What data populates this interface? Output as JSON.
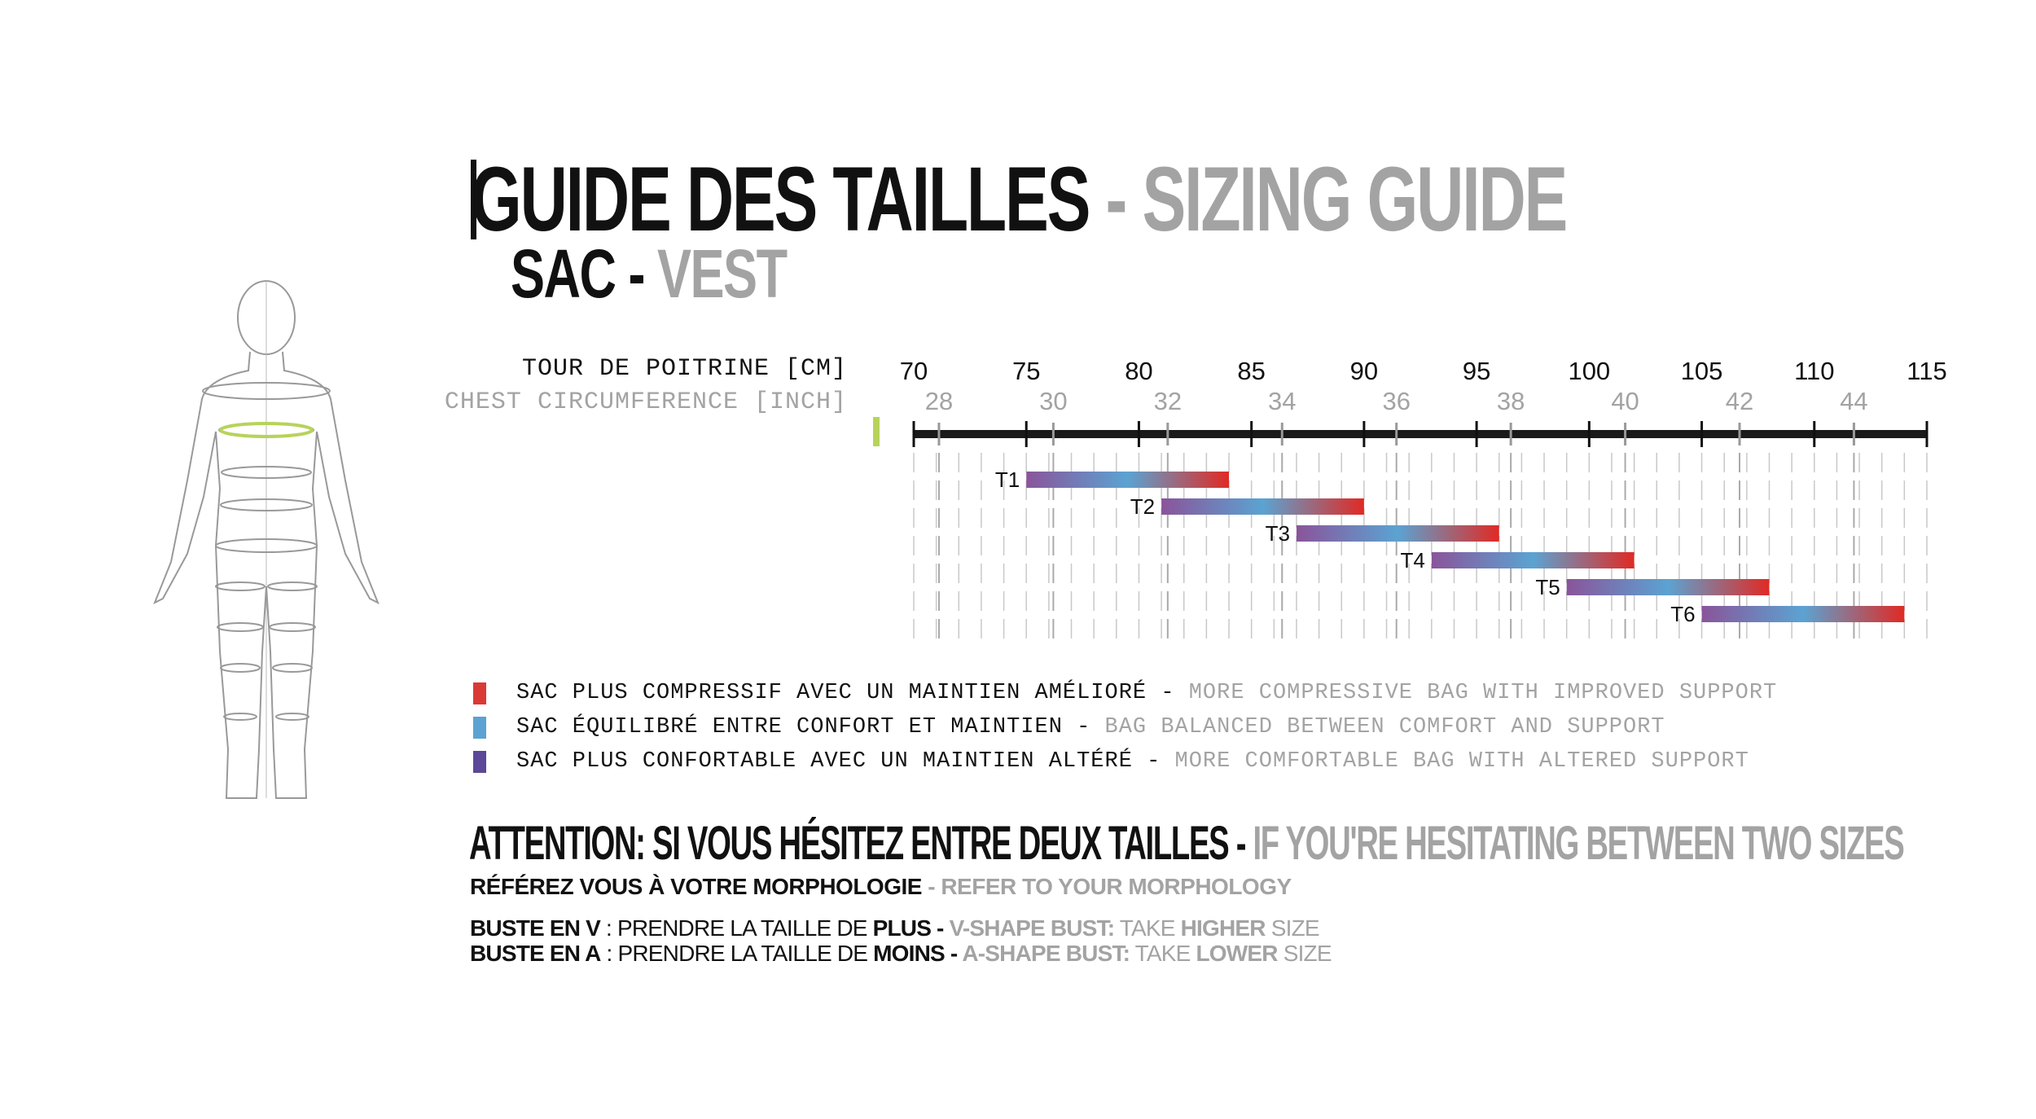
{
  "header": {
    "title_fr": "GUIDE DES TAILLES",
    "title_sep": " - ",
    "title_en": "SIZING GUIDE",
    "subtitle_fr": "SAC",
    "subtitle_sep": " - ",
    "subtitle_en": "VEST"
  },
  "colors": {
    "compressive": "#d93a35",
    "balanced": "#5ba3d2",
    "comfortable": "#5b4898",
    "body_highlight": "#b7d35a"
  },
  "chart_data": {
    "type": "bar",
    "orientation": "horizontal-range",
    "xlabel_primary": "TOUR DE POITRINE [CM]",
    "xlabel_secondary": "CHEST CIRCUMFERENCE [INCH]",
    "xlim_cm": [
      70,
      115
    ],
    "cm_ticks": [
      "70",
      "75",
      "80",
      "85",
      "90",
      "95",
      "100",
      "105",
      "110",
      "115"
    ],
    "inch_ticks": [
      "28",
      "30",
      "32",
      "34",
      "36",
      "38",
      "40",
      "42",
      "44"
    ],
    "categories": [
      "T1",
      "T2",
      "T3",
      "T4",
      "T5",
      "T6"
    ],
    "ranges_cm": [
      [
        75,
        84
      ],
      [
        81,
        90
      ],
      [
        87,
        96
      ],
      [
        93,
        102
      ],
      [
        99,
        108
      ],
      [
        105,
        114
      ]
    ],
    "gradient": "comfortable → balanced → compressive"
  },
  "legend": [
    {
      "fr": "SAC PLUS COMPRESSIF AVEC UN MAINTIEN AMÉLIORÉ",
      "sep": " - ",
      "en": "MORE COMPRESSIVE BAG WITH IMPROVED SUPPORT"
    },
    {
      "fr": "SAC ÉQUILIBRÉ ENTRE CONFORT ET MAINTIEN",
      "sep": " - ",
      "en": "BAG BALANCED BETWEEN COMFORT AND SUPPORT"
    },
    {
      "fr": "SAC PLUS CONFORTABLE AVEC UN MAINTIEN ALTÉRÉ",
      "sep": " - ",
      "en": "MORE COMFORTABLE BAG WITH ALTERED SUPPORT"
    }
  ],
  "notes": {
    "attention_fr": "ATTENTION: SI VOUS HÉSITEZ ENTRE DEUX TAILLES",
    "attention_sep": " - ",
    "attention_en": "IF YOU'RE HESITATING BETWEEN TWO SIZES",
    "refer_fr": "RÉFÉREZ VOUS À VOTRE MORPHOLOGIE",
    "refer_sep": " - ",
    "refer_en": "REFER TO YOUR MORPHOLOGY",
    "v": {
      "a": "BUSTE EN V",
      "b": " : PRENDRE LA TAILLE DE ",
      "c": "PLUS",
      "d": " - ",
      "e": "V-SHAPE BUST:",
      "f": " TAKE ",
      "g": "HIGHER",
      "h": " SIZE"
    },
    "a": {
      "a": "BUSTE EN A",
      "b": "  : PRENDRE LA TAILLE DE ",
      "c": "MOINS",
      "d": " -  ",
      "e": "A-SHAPE BUST:",
      "f": " TAKE ",
      "g": "LOWER",
      "h": " SIZE"
    }
  }
}
